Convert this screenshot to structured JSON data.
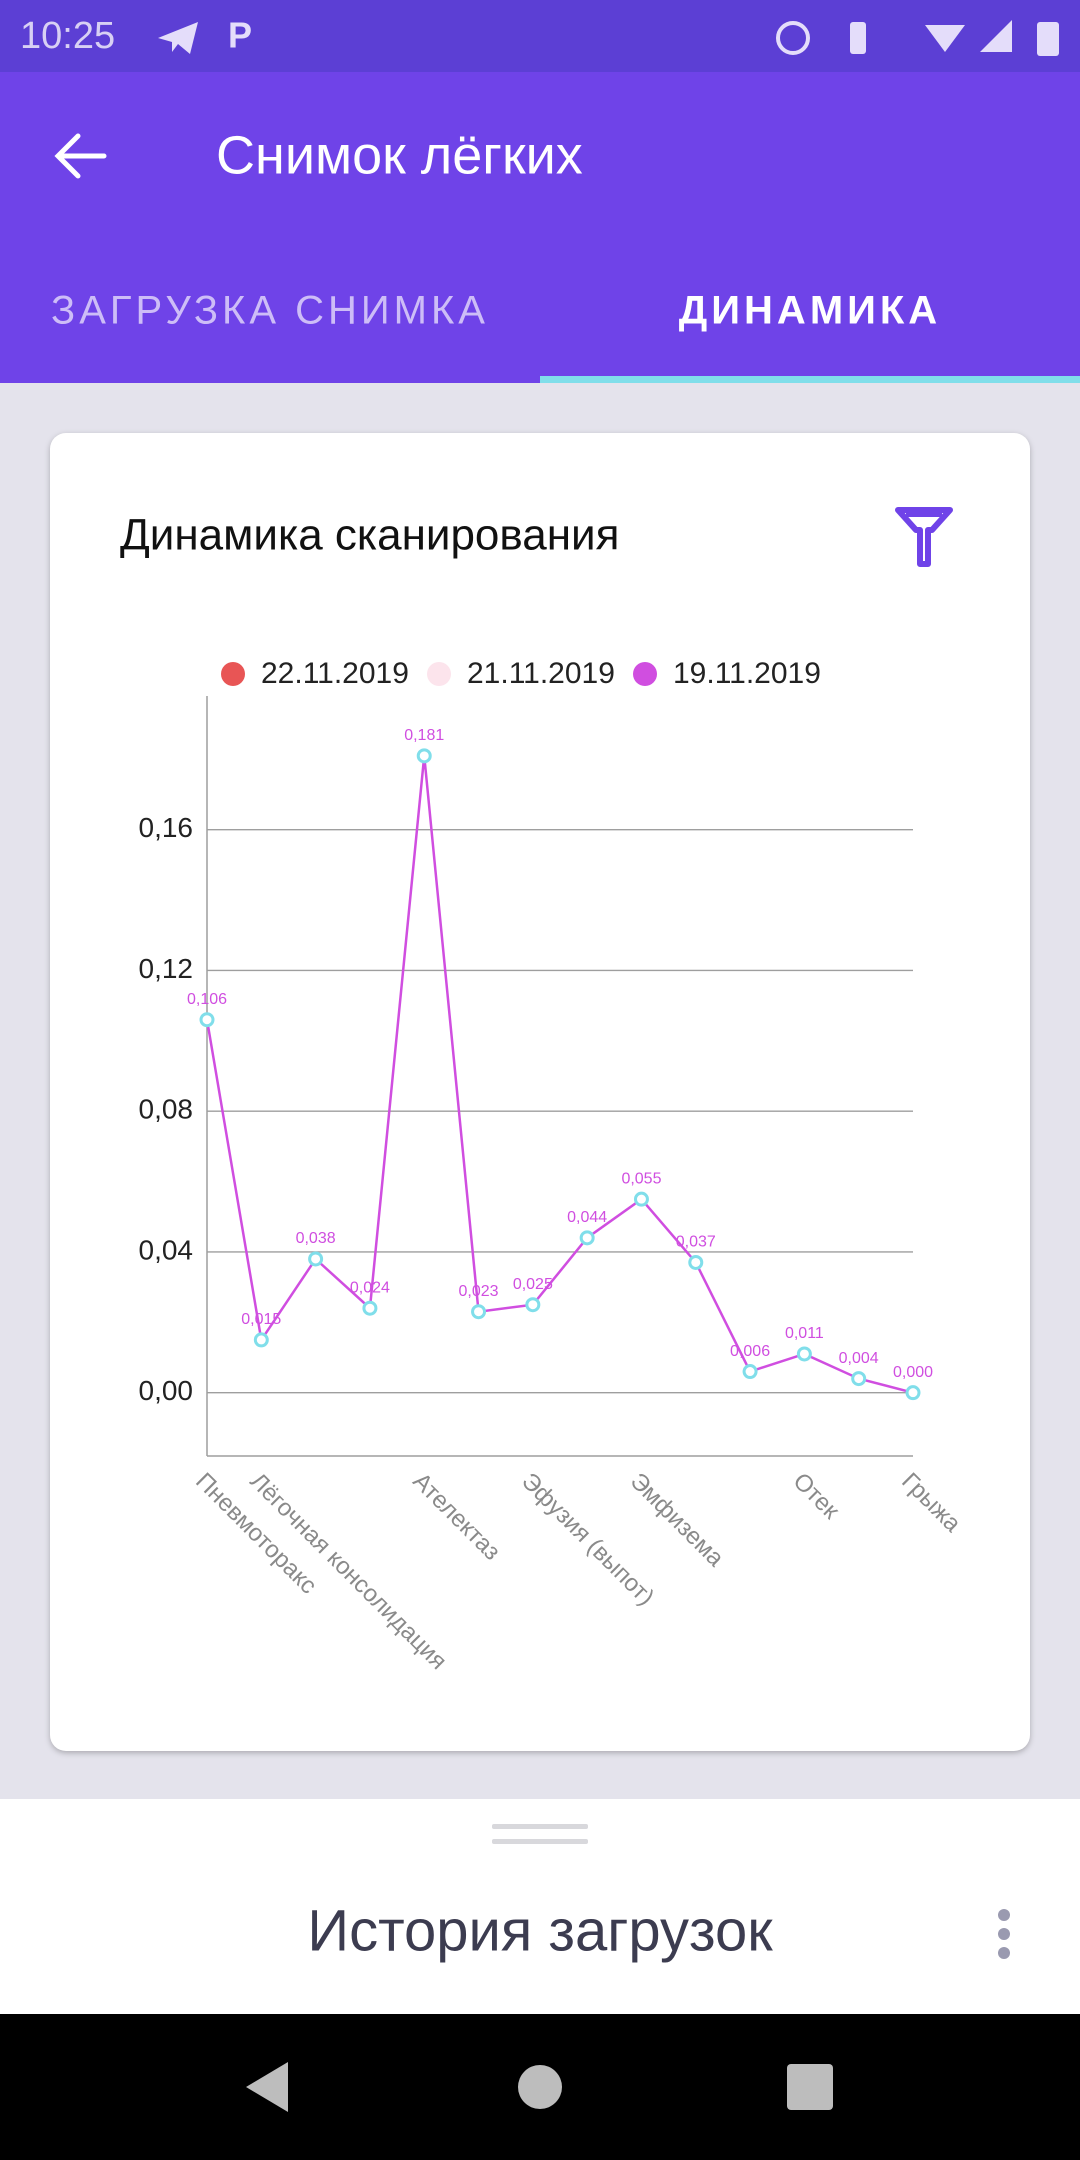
{
  "status_bar": {
    "time": "10:25"
  },
  "app_bar": {
    "title": "Снимок лёгких"
  },
  "tabs": [
    "ЗАГРУЗКА СНИМКА",
    "ДИНАМИКА"
  ],
  "bottom_sheet": {
    "title": "История загрузок"
  },
  "chart_data": {
    "type": "line",
    "title": "Динамика сканирования",
    "categories": [
      "Пневмоторакс",
      "Лёгочная консолидация",
      null,
      null,
      "Ателектаз",
      null,
      "Эфузия (выпот)",
      null,
      "Эмфизема",
      null,
      null,
      "Отек",
      null,
      "Грыжа"
    ],
    "series": [
      {
        "name": "22.11.2019",
        "color": "#e85555",
        "values": [
          null,
          null,
          null,
          null,
          null,
          null,
          null,
          null,
          null,
          null,
          null,
          null,
          null,
          null
        ]
      },
      {
        "name": "21.11.2019",
        "color": "#fce4ec",
        "values": [
          null,
          null,
          null,
          null,
          null,
          null,
          null,
          null,
          null,
          null,
          null,
          null,
          null,
          null
        ]
      },
      {
        "name": "19.11.2019",
        "color": "#d04ee0",
        "values": [
          0.106,
          0.015,
          0.038,
          0.024,
          0.181,
          0.023,
          0.025,
          0.044,
          0.055,
          0.037,
          0.006,
          0.011,
          0.004,
          0.0
        ],
        "value_labels": [
          "0,106",
          "0,015",
          "0,038",
          "0,024",
          "0,181",
          "0,023",
          "0,025",
          "0,044",
          "0,055",
          "0,037",
          "0,006",
          "0,011",
          "0,004",
          "0,000"
        ]
      }
    ],
    "ylim": [
      -0.018,
      0.198
    ],
    "yticks": [
      {
        "value": 0,
        "label": "0,00"
      },
      {
        "value": 0.04,
        "label": "0,04"
      },
      {
        "value": 0.08,
        "label": "0,08"
      },
      {
        "value": 0.12,
        "label": "0,12"
      },
      {
        "value": 0.16,
        "label": "0,16"
      }
    ],
    "grid": true,
    "legend": "top",
    "marker_color": "#80deea"
  }
}
